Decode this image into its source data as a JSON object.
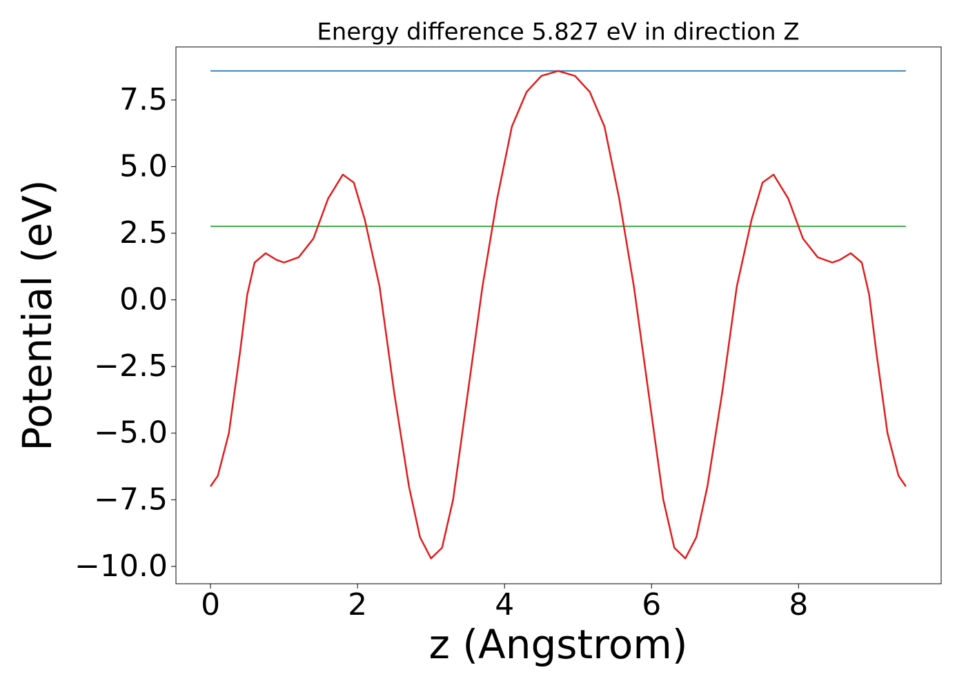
{
  "chart_data": {
    "type": "line",
    "title": "Energy difference 5.827 eV in direction Z",
    "x_label": "z (Angstrom)",
    "y_label": "Potential (eV)",
    "xlim": [
      -0.47,
      9.94
    ],
    "ylim": [
      -10.65,
      9.49
    ],
    "xticks": [
      0,
      2,
      4,
      6,
      8
    ],
    "yticks": [
      {
        "value": -10,
        "label": "−10.0"
      },
      {
        "value": -7.5,
        "label": "−7.5"
      },
      {
        "value": -5,
        "label": "−5.0"
      },
      {
        "value": -2.5,
        "label": "−2.5"
      },
      {
        "value": 0,
        "label": "0.0"
      },
      2.5,
      {
        "value": 5,
        "label": "5.0"
      },
      7.5
    ],
    "grid": false,
    "series": [
      {
        "color": "#1f77b4",
        "x": [
          0,
          9.46
        ],
        "values": [
          8.59,
          8.59
        ]
      },
      {
        "color": "#2ca02c",
        "x": [
          0,
          9.46
        ],
        "values": [
          2.76,
          2.76
        ]
      },
      {
        "color": "#e31a1c",
        "x": [
          0,
          0.1,
          0.25,
          0.4,
          0.5,
          0.6,
          0.75,
          0.9,
          1.0,
          1.2,
          1.4,
          1.6,
          1.8,
          1.95,
          2.1,
          2.3,
          2.5,
          2.7,
          2.85,
          3.0,
          3.15,
          3.3,
          3.5,
          3.7,
          3.9,
          4.1,
          4.3,
          4.5,
          4.73,
          4.96,
          5.16,
          5.36,
          5.56,
          5.76,
          5.96,
          6.16,
          6.31,
          6.46,
          6.61,
          6.76,
          6.96,
          7.16,
          7.36,
          7.51,
          7.66,
          7.86,
          8.06,
          8.26,
          8.46,
          8.56,
          8.71,
          8.86,
          8.96,
          9.06,
          9.21,
          9.36,
          9.46
        ],
        "values": [
          -7.0,
          -6.6,
          -5.0,
          -2.0,
          0.2,
          1.4,
          1.75,
          1.5,
          1.4,
          1.6,
          2.3,
          3.8,
          4.7,
          4.4,
          3.0,
          0.5,
          -3.5,
          -7.0,
          -8.9,
          -9.7,
          -9.3,
          -7.5,
          -3.5,
          0.5,
          3.8,
          6.5,
          7.8,
          8.4,
          8.59,
          8.4,
          7.8,
          6.5,
          3.8,
          0.5,
          -3.5,
          -7.5,
          -9.3,
          -9.7,
          -8.9,
          -7.0,
          -3.5,
          0.5,
          3.0,
          4.4,
          4.7,
          3.8,
          2.3,
          1.6,
          1.4,
          1.5,
          1.75,
          1.4,
          0.2,
          -2.0,
          -5.0,
          -6.6,
          -7.0
        ]
      }
    ]
  }
}
